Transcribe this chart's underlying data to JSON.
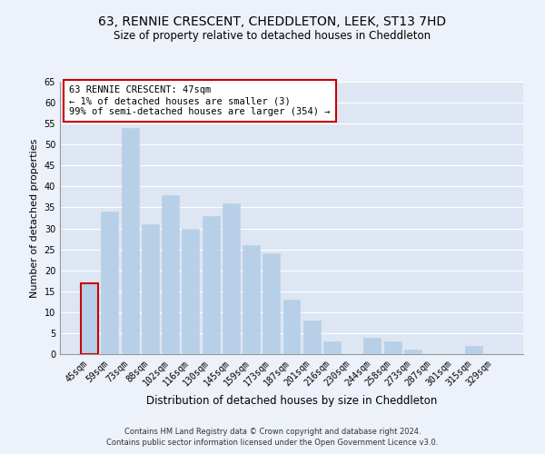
{
  "title": "63, RENNIE CRESCENT, CHEDDLETON, LEEK, ST13 7HD",
  "subtitle": "Size of property relative to detached houses in Cheddleton",
  "xlabel": "Distribution of detached houses by size in Cheddleton",
  "ylabel": "Number of detached properties",
  "bar_labels": [
    "45sqm",
    "59sqm",
    "73sqm",
    "88sqm",
    "102sqm",
    "116sqm",
    "130sqm",
    "145sqm",
    "159sqm",
    "173sqm",
    "187sqm",
    "201sqm",
    "216sqm",
    "230sqm",
    "244sqm",
    "258sqm",
    "273sqm",
    "287sqm",
    "301sqm",
    "315sqm",
    "329sqm"
  ],
  "bar_values": [
    17,
    34,
    54,
    31,
    38,
    30,
    33,
    36,
    26,
    24,
    13,
    8,
    3,
    0,
    4,
    3,
    1,
    0,
    0,
    2,
    0
  ],
  "bar_color": "#b8cfe8",
  "highlight_bar_index": 0,
  "highlight_edge_color": "#cc0000",
  "annotation_title": "63 RENNIE CRESCENT: 47sqm",
  "annotation_line1": "← 1% of detached houses are smaller (3)",
  "annotation_line2": "99% of semi-detached houses are larger (354) →",
  "annotation_box_edge_color": "#cc0000",
  "ylim": [
    0,
    65
  ],
  "yticks": [
    0,
    5,
    10,
    15,
    20,
    25,
    30,
    35,
    40,
    45,
    50,
    55,
    60,
    65
  ],
  "footer_line1": "Contains HM Land Registry data © Crown copyright and database right 2024.",
  "footer_line2": "Contains public sector information licensed under the Open Government Licence v3.0.",
  "title_fontsize": 10,
  "subtitle_fontsize": 8.5,
  "xlabel_fontsize": 8.5,
  "ylabel_fontsize": 8,
  "tick_fontsize": 7,
  "annotation_fontsize": 7.5,
  "footer_fontsize": 6,
  "background_color": "#edf1f9",
  "grid_color": "#ffffff",
  "axes_bg_color": "#dde6f2"
}
